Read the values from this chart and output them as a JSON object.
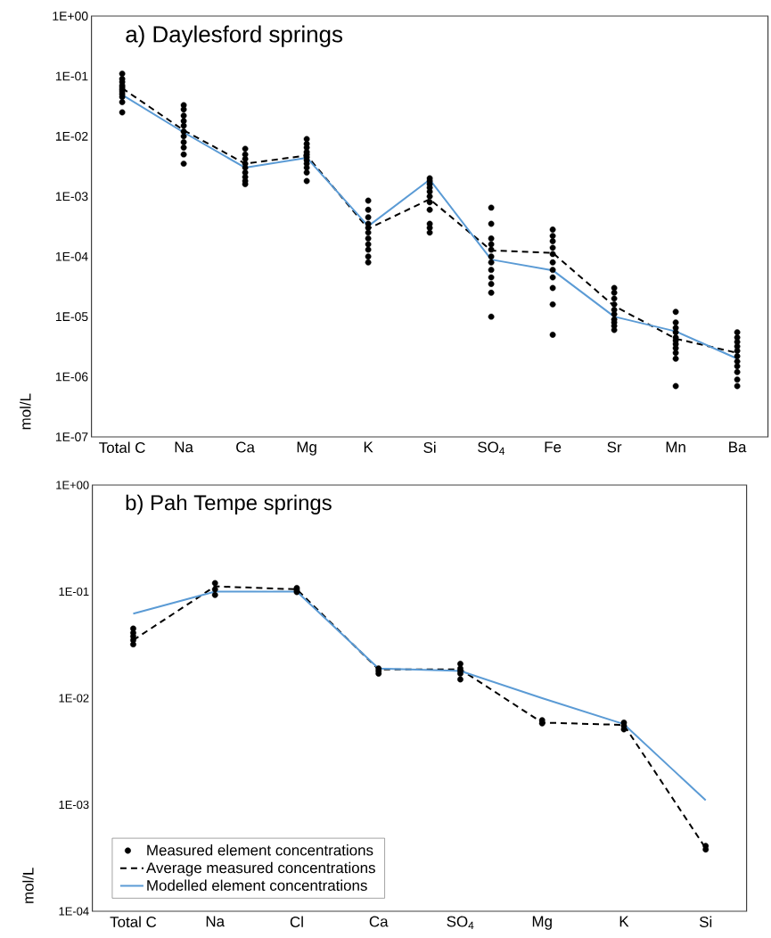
{
  "chart_data": [
    {
      "type": "line",
      "title": "a) Daylesford springs",
      "ylabel": "mol/L",
      "log": true,
      "categories": [
        "Total C",
        "Na",
        "Ca",
        "Mg",
        "K",
        "Si",
        "SO$_{4}$",
        "Fe",
        "Sr",
        "Mn",
        "Ba"
      ],
      "ylim": [
        1e-07,
        1
      ],
      "yticks": [
        {
          "value": 1,
          "label": "1E+00"
        },
        {
          "value": 0.1,
          "label": "1E-01"
        },
        {
          "value": 0.01,
          "label": "1E-02"
        },
        {
          "value": 0.001,
          "label": "1E-03"
        },
        {
          "value": 0.0001,
          "label": "1E-04"
        },
        {
          "value": 1e-05,
          "label": "1E-05"
        },
        {
          "value": 1e-06,
          "label": "1E-06"
        },
        {
          "value": 1e-07,
          "label": "1E-07"
        }
      ],
      "series": [
        {
          "type": "scatter",
          "marker": "circle",
          "color": "#000000",
          "x": [
            "Total C",
            "Total C",
            "Total C",
            "Total C",
            "Total C",
            "Total C",
            "Total C",
            "Total C",
            "Total C",
            "Total C",
            "Total C",
            "Na",
            "Na",
            "Na",
            "Na",
            "Na",
            "Na",
            "Na",
            "Na",
            "Na",
            "Na",
            "Na",
            "Ca",
            "Ca",
            "Ca",
            "Ca",
            "Ca",
            "Ca",
            "Ca",
            "Ca",
            "Ca",
            "Mg",
            "Mg",
            "Mg",
            "Mg",
            "Mg",
            "Mg",
            "Mg",
            "Mg",
            "Mg",
            "Mg",
            "Mg",
            "K",
            "K",
            "K",
            "K",
            "K",
            "K",
            "K",
            "K",
            "K",
            "K",
            "K",
            "Si",
            "Si",
            "Si",
            "Si",
            "Si",
            "Si",
            "Si",
            "Si",
            "Si",
            "Si",
            "Si",
            "SO$_{4}$",
            "SO$_{4}$",
            "SO$_{4}$",
            "SO$_{4}$",
            "SO$_{4}$",
            "SO$_{4}$",
            "SO$_{4}$",
            "SO$_{4}$",
            "SO$_{4}$",
            "SO$_{4}$",
            "SO$_{4}$",
            "SO$_{4}$",
            "Fe",
            "Fe",
            "Fe",
            "Fe",
            "Fe",
            "Fe",
            "Fe",
            "Fe",
            "Fe",
            "Fe",
            "Fe",
            "Sr",
            "Sr",
            "Sr",
            "Sr",
            "Sr",
            "Sr",
            "Sr",
            "Sr",
            "Sr",
            "Sr",
            "Mn",
            "Mn",
            "Mn",
            "Mn",
            "Mn",
            "Mn",
            "Mn",
            "Mn",
            "Mn",
            "Mn",
            "Mn",
            "Ba",
            "Ba",
            "Ba",
            "Ba",
            "Ba",
            "Ba",
            "Ba",
            "Ba",
            "Ba",
            "Ba",
            "Ba"
          ],
          "values": [
            0.11,
            0.09,
            0.08,
            0.07,
            0.065,
            0.06,
            0.055,
            0.05,
            0.045,
            0.037,
            0.025,
            0.033,
            0.028,
            0.022,
            0.018,
            0.015,
            0.012,
            0.01,
            0.008,
            0.0065,
            0.005,
            0.0035,
            0.0062,
            0.005,
            0.0042,
            0.0035,
            0.003,
            0.0025,
            0.0021,
            0.0018,
            0.0016,
            0.009,
            0.0075,
            0.0065,
            0.0055,
            0.005,
            0.0045,
            0.004,
            0.0035,
            0.003,
            0.0025,
            0.0018,
            0.00085,
            0.0006,
            0.00045,
            0.00035,
            0.0003,
            0.00025,
            0.0002,
            0.00016,
            0.00013,
            0.0001,
            8e-05,
            0.002,
            0.0018,
            0.0016,
            0.0014,
            0.0012,
            0.001,
            0.0008,
            0.0006,
            0.00035,
            0.0003,
            0.00025,
            0.00065,
            0.00035,
            0.0002,
            0.00016,
            0.00013,
            0.0001,
            8e-05,
            6e-05,
            4.5e-05,
            3.5e-05,
            2.5e-05,
            1e-05,
            0.00028,
            0.00022,
            0.00018,
            0.00014,
            0.00011,
            8e-05,
            6e-05,
            4.5e-05,
            3e-05,
            1.6e-05,
            5e-06,
            3e-05,
            2.5e-05,
            2e-05,
            1.6e-05,
            1.3e-05,
            1.1e-05,
            9e-06,
            8e-06,
            7e-06,
            6e-06,
            1.2e-05,
            8e-06,
            6.5e-06,
            5.5e-06,
            4.5e-06,
            4e-06,
            3.5e-06,
            3e-06,
            2.5e-06,
            2e-06,
            7e-07,
            5.5e-06,
            4.5e-06,
            3.8e-06,
            3.2e-06,
            2.7e-06,
            2.2e-06,
            1.8e-06,
            1.5e-06,
            1.2e-06,
            9e-07,
            7e-07
          ]
        },
        {
          "line_style": "dashed",
          "marker": "none",
          "color": "#000000",
          "values": [
            0.063,
            0.0126,
            0.0035,
            0.0048,
            0.00029,
            0.0009,
            0.000126,
            0.000115,
            1.5e-05,
            4.3e-06,
            2.5e-06
          ]
        },
        {
          "line_style": "solid",
          "marker": "none",
          "color": "#5b9bd5",
          "values": [
            0.049,
            0.0116,
            0.003,
            0.0044,
            0.00032,
            0.0019,
            8.9e-05,
            5.9e-05,
            1e-05,
            5.7e-06,
            2e-06
          ]
        }
      ]
    },
    {
      "type": "line",
      "title": "b) Pah Tempe springs",
      "ylabel": "mol/L",
      "log": true,
      "legend": "bottom left",
      "categories": [
        "Total C",
        "Na",
        "Cl",
        "Ca",
        "SO$_{4}$",
        "Mg",
        "K",
        "Si"
      ],
      "ylim": [
        0.0001,
        1
      ],
      "yticks": [
        {
          "value": 1,
          "label": "1E+00"
        },
        {
          "value": 0.1,
          "label": "1E-01"
        },
        {
          "value": 0.01,
          "label": "1E-02"
        },
        {
          "value": 0.001,
          "label": "1E-03"
        },
        {
          "value": 0.0001,
          "label": "1E-04"
        }
      ],
      "series": [
        {
          "type": "scatter",
          "name": "Measured element concentrations",
          "marker": "circle",
          "color": "#000000",
          "x": [
            "Total C",
            "Total C",
            "Total C",
            "Total C",
            "Total C",
            "Na",
            "Na",
            "Na",
            "Cl",
            "Cl",
            "Cl",
            "Ca",
            "Ca",
            "Ca",
            "SO$_{4}$",
            "SO$_{4}$",
            "SO$_{4}$",
            "SO$_{4}$",
            "SO$_{4}$",
            "Mg",
            "Mg",
            "K",
            "K",
            "K",
            "Si",
            "Si"
          ],
          "values": [
            0.045,
            0.041,
            0.038,
            0.035,
            0.032,
            0.12,
            0.105,
            0.093,
            0.108,
            0.103,
            0.099,
            0.019,
            0.018,
            0.017,
            0.021,
            0.019,
            0.018,
            0.017,
            0.015,
            0.0062,
            0.0058,
            0.0059,
            0.0055,
            0.0051,
            0.00041,
            0.00038
          ]
        },
        {
          "name": "Average measured concentrations",
          "line_style": "dashed",
          "marker": "none",
          "color": "#000000",
          "values": [
            0.035,
            0.112,
            0.105,
            0.0186,
            0.0186,
            0.0059,
            0.0056,
            0.00039
          ]
        },
        {
          "name": "Modelled element concentrations",
          "line_style": "solid",
          "marker": "none",
          "color": "#5b9bd5",
          "values": [
            0.062,
            0.1,
            0.1,
            0.019,
            0.018,
            0.01,
            0.0057,
            0.0011
          ]
        }
      ]
    }
  ]
}
